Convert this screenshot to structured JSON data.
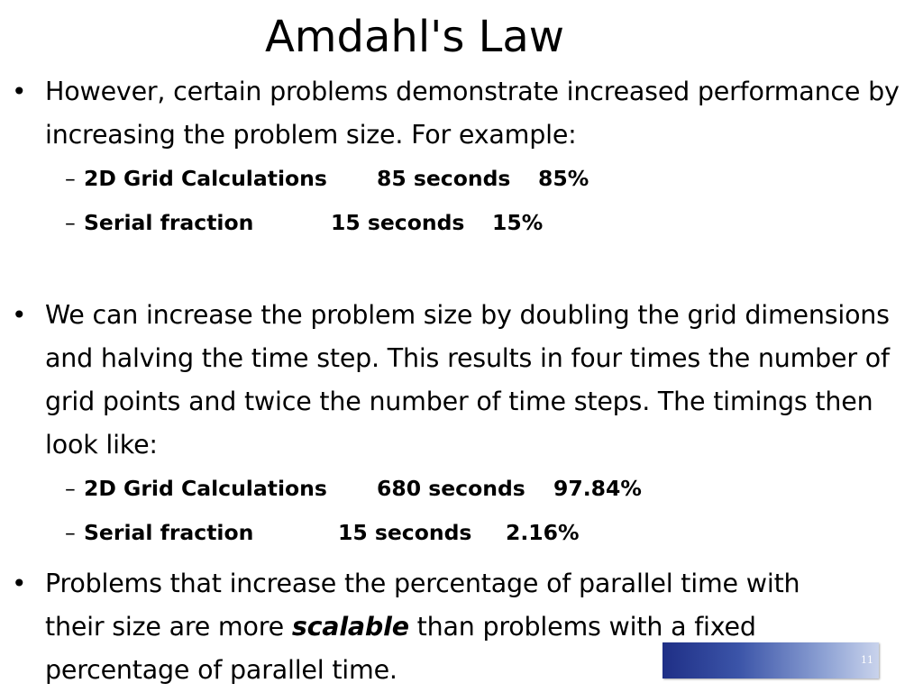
{
  "title": "Amdahl's Law",
  "bullets": [
    {
      "text": "However, certain problems demonstrate increased performance by increasing the problem size. For example:",
      "subs": [
        {
          "label": "2D Grid Calculations",
          "time": "85 seconds",
          "percent": "85%"
        },
        {
          "label": "Serial fraction",
          "time": "15 seconds",
          "percent": "15%"
        }
      ]
    },
    {
      "text": "We can increase the problem size by doubling the grid dimensions and halving the time step. This results in four times the number of grid points and twice the number of time steps. The timings then look like:",
      "subs": [
        {
          "label": "2D Grid Calculations",
          "time": "680 seconds",
          "percent": "97.84%"
        },
        {
          "label": "Serial fraction",
          "time": "15 seconds",
          "percent": "2.16%"
        }
      ]
    },
    {
      "text_before": "Problems that increase the percentage of parallel time with their size are more ",
      "emphasis": "scalable",
      "text_after": " than problems with a fixed percentage of parallel time."
    }
  ],
  "bullet_symbol": "•",
  "dash_symbol": "–",
  "page_number": "11",
  "colors": {
    "footer_bar_dark": "#1f2f86",
    "footer_bar_light": "#c9d3ec"
  }
}
